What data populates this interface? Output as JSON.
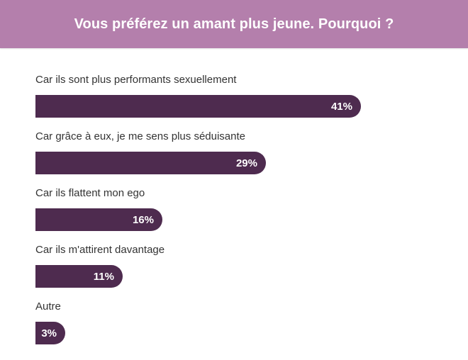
{
  "header": {
    "title": "Vous préférez un amant plus jeune. Pourquoi ?"
  },
  "colors": {
    "header_bg": "#b47fac",
    "bar": "#4e2b4f",
    "text": "#333333"
  },
  "chart_data": {
    "type": "bar",
    "orientation": "horizontal",
    "title": "Vous préférez un amant plus jeune. Pourquoi ?",
    "categories": [
      "Car ils sont plus performants sexuellement",
      "Car grâce à eux, je me sens plus séduisante",
      "Car ils flattent mon ego",
      "Car ils m'attirent davantage",
      "Autre"
    ],
    "values": [
      41,
      29,
      16,
      11,
      3
    ],
    "value_labels": [
      "41%",
      "29%",
      "16%",
      "11%",
      "3%"
    ],
    "unit": "%",
    "xlim": [
      0,
      50
    ],
    "grid": false
  }
}
